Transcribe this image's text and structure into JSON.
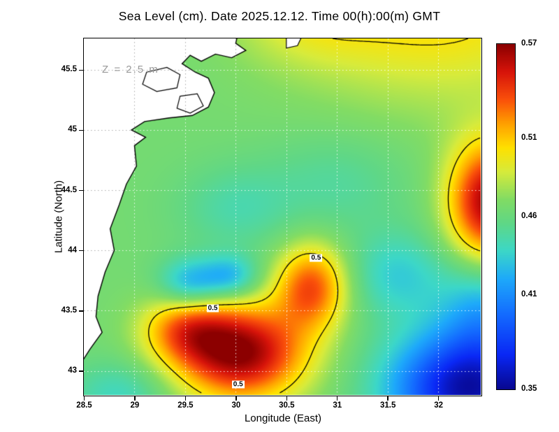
{
  "title": "Sea Level (cm). Date 2025.12.12. Time 00(h):00(m) GMT",
  "annotation": "Z = 2.5 m",
  "axes": {
    "xlabel": "Longitude (East)",
    "ylabel": "Latitude (North)",
    "x_ticks": [
      28.5,
      29,
      29.5,
      30,
      30.5,
      31,
      31.5,
      32
    ],
    "y_ticks": [
      43,
      43.5,
      44,
      44.5,
      45,
      45.5
    ]
  },
  "colorbar": {
    "min": 0.35,
    "max": 0.57,
    "tick_values": [
      0.57,
      0.51,
      0.46,
      0.41,
      0.35
    ],
    "stops": [
      [
        0.0,
        8,
        8,
        145
      ],
      [
        0.1,
        10,
        40,
        245
      ],
      [
        0.22,
        20,
        110,
        255
      ],
      [
        0.32,
        30,
        170,
        250
      ],
      [
        0.4,
        60,
        215,
        200
      ],
      [
        0.48,
        95,
        215,
        135
      ],
      [
        0.55,
        130,
        220,
        100
      ],
      [
        0.63,
        215,
        235,
        60
      ],
      [
        0.7,
        255,
        225,
        0
      ],
      [
        0.77,
        255,
        160,
        0
      ],
      [
        0.84,
        250,
        80,
        10
      ],
      [
        0.92,
        215,
        20,
        10
      ],
      [
        1.0,
        140,
        0,
        0
      ]
    ]
  },
  "chart_data": {
    "type": "heatmap",
    "title": "Sea Level (cm). Date 2025.12.12. Time 00(h):00(m) GMT",
    "xlabel": "Longitude (East)",
    "ylabel": "Latitude (North)",
    "x_range": [
      28.5,
      32.42
    ],
    "y_range": [
      42.8,
      45.76
    ],
    "value_range": [
      0.35,
      0.57
    ],
    "base_value": 0.465,
    "contour_level": 0.5,
    "contour_labels": [
      {
        "lon": 29.77,
        "lat": 43.52,
        "text": "0.5"
      },
      {
        "lon": 30.79,
        "lat": 43.94,
        "text": "0.5"
      },
      {
        "lon": 30.02,
        "lat": 42.89,
        "text": "0.5"
      }
    ],
    "features": [
      {
        "name": "sw-warm-core",
        "lon": 30.05,
        "lat": 43.15,
        "sigma_lon": 0.45,
        "sigma_lat": 0.28,
        "amp": 0.105
      },
      {
        "name": "sw-warm-arm-northeast",
        "lon": 30.75,
        "lat": 43.7,
        "sigma_lon": 0.25,
        "sigma_lat": 0.25,
        "amp": 0.07
      },
      {
        "name": "sw-warm-west-extension",
        "lon": 29.5,
        "lat": 43.35,
        "sigma_lon": 0.3,
        "sigma_lat": 0.2,
        "amp": 0.05
      },
      {
        "name": "east-edge-warm-eddy",
        "lon": 32.5,
        "lat": 44.4,
        "sigma_lon": 0.28,
        "sigma_lat": 0.35,
        "amp": 0.1
      },
      {
        "name": "northeast-yellow-band",
        "lon": 32.0,
        "lat": 46.05,
        "sigma_lon": 1.0,
        "sigma_lat": 0.55,
        "amp": 0.042
      },
      {
        "name": "top-yellow-strip",
        "lon": 30.7,
        "lat": 45.95,
        "sigma_lon": 0.5,
        "sigma_lat": 0.28,
        "amp": 0.02
      },
      {
        "name": "southeast-cold-corner",
        "lon": 32.3,
        "lat": 42.85,
        "sigma_lon": 0.55,
        "sigma_lat": 0.35,
        "amp": -0.11
      },
      {
        "name": "east-edge-cool",
        "lon": 32.45,
        "lat": 43.55,
        "sigma_lon": 0.3,
        "sigma_lat": 0.3,
        "amp": -0.035
      },
      {
        "name": "west-cool-patch-1",
        "lon": 29.55,
        "lat": 43.72,
        "sigma_lon": 0.22,
        "sigma_lat": 0.15,
        "amp": -0.045
      },
      {
        "name": "west-cool-patch-2",
        "lon": 29.95,
        "lat": 43.78,
        "sigma_lon": 0.2,
        "sigma_lat": 0.13,
        "amp": -0.04
      },
      {
        "name": "central-cool-patch",
        "lon": 31.6,
        "lat": 43.8,
        "sigma_lon": 0.35,
        "sigma_lat": 0.25,
        "amp": -0.03
      },
      {
        "name": "southwest-coast-cool",
        "lon": 28.85,
        "lat": 42.8,
        "sigma_lon": 0.35,
        "sigma_lat": 0.2,
        "amp": -0.025
      },
      {
        "name": "north-cool-patch",
        "lon": 30.0,
        "lat": 44.35,
        "sigma_lon": 0.4,
        "sigma_lat": 0.25,
        "amp": -0.018
      },
      {
        "name": "northeast-cool-patch",
        "lon": 31.0,
        "lat": 44.55,
        "sigma_lon": 0.5,
        "sigma_lat": 0.3,
        "amp": -0.015
      }
    ],
    "coastline": [
      [
        30.05,
        45.9
      ],
      [
        30.0,
        45.72
      ],
      [
        30.1,
        45.66
      ],
      [
        29.96,
        45.6
      ],
      [
        29.8,
        45.63
      ],
      [
        29.66,
        45.57
      ],
      [
        29.55,
        45.62
      ],
      [
        29.47,
        45.55
      ],
      [
        29.6,
        45.48
      ],
      [
        29.73,
        45.43
      ],
      [
        29.79,
        45.31
      ],
      [
        29.73,
        45.19
      ],
      [
        29.57,
        45.12
      ],
      [
        29.34,
        45.1
      ],
      [
        29.1,
        45.07
      ],
      [
        28.97,
        45.0
      ],
      [
        29.11,
        44.94
      ],
      [
        29.0,
        44.87
      ],
      [
        29.02,
        44.7
      ],
      [
        28.92,
        44.55
      ],
      [
        28.85,
        44.38
      ],
      [
        28.76,
        44.18
      ],
      [
        28.8,
        44.0
      ],
      [
        28.71,
        43.82
      ],
      [
        28.64,
        43.62
      ],
      [
        28.62,
        43.45
      ],
      [
        28.68,
        43.32
      ],
      [
        28.56,
        43.18
      ],
      [
        28.44,
        43.02
      ],
      [
        28.35,
        42.98
      ],
      [
        28.35,
        45.9
      ]
    ],
    "lakes": [
      [
        [
          29.12,
          45.48
        ],
        [
          29.32,
          45.52
        ],
        [
          29.45,
          45.46
        ],
        [
          29.42,
          45.35
        ],
        [
          29.22,
          45.32
        ],
        [
          29.08,
          45.38
        ]
      ],
      [
        [
          29.45,
          45.28
        ],
        [
          29.62,
          45.3
        ],
        [
          29.68,
          45.2
        ],
        [
          29.55,
          45.14
        ],
        [
          29.42,
          45.18
        ]
      ]
    ],
    "islands": [
      [
        [
          30.5,
          45.8
        ],
        [
          30.66,
          45.79
        ],
        [
          30.61,
          45.7
        ],
        [
          30.5,
          45.68
        ]
      ]
    ]
  }
}
